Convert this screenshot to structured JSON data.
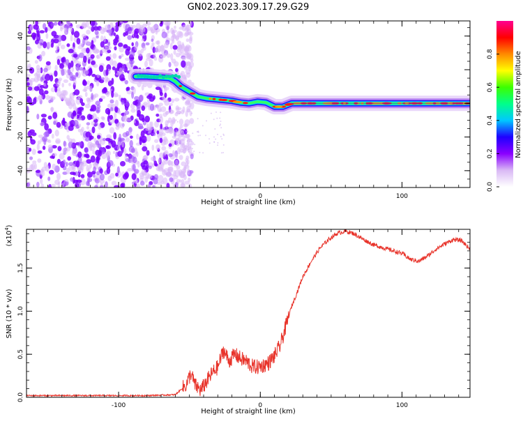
{
  "title": "GN02.2023.309.17.29.G29",
  "colorbar": {
    "label": "Normalized spectral amplitude",
    "ticks": [
      0.0,
      0.2,
      0.4,
      0.6,
      0.8
    ],
    "range": [
      0,
      1
    ],
    "colors": [
      "#ffffff",
      "#d9b8f5",
      "#8a00ff",
      "#1f00ff",
      "#00c8ff",
      "#00ff8a",
      "#3cff00",
      "#ffff00",
      "#ff8a00",
      "#ff0000",
      "#ff0090"
    ]
  },
  "chart_data": [
    {
      "type": "heatmap",
      "xlabel": "Height of straight line (km)",
      "ylabel": "Frequency (Hz)",
      "xlim": [
        -165,
        148
      ],
      "ylim": [
        -50,
        49
      ],
      "xticks": [
        -100,
        0,
        100
      ],
      "yticks": [
        -40,
        -20,
        0,
        20,
        40
      ],
      "ridge": {
        "x": [
          -88,
          -80,
          -72,
          -64,
          -60,
          -56,
          -50,
          -44,
          -38,
          -32,
          -26,
          -20,
          -14,
          -8,
          -2,
          4,
          10,
          16,
          22,
          40,
          60,
          80,
          100,
          120,
          148
        ],
        "y": [
          16,
          16,
          15.5,
          15,
          13,
          10,
          7,
          4,
          3,
          2.5,
          2,
          1.5,
          0.5,
          0,
          1,
          0.5,
          -2,
          -2,
          0,
          0,
          0,
          0,
          0,
          0,
          0
        ]
      },
      "noise_region": [
        -165,
        -60
      ]
    },
    {
      "type": "line",
      "xlabel": "Height of straight line (km)",
      "ylabel": "SNR (10 * v/v)",
      "scale_note": "(x10",
      "scale_exp": "4",
      "scale_close": ")",
      "xlim": [
        -165,
        148
      ],
      "ylim": [
        0,
        1.95
      ],
      "xticks": [
        -100,
        0,
        100
      ],
      "yticks": [
        0.0,
        0.5,
        1.0,
        1.5
      ],
      "ytick_labels": [
        "0.0",
        "0.5",
        "1.0",
        "1.5"
      ],
      "series": [
        {
          "color": "#e8332a",
          "x": [
            -165,
            -140,
            -110,
            -80,
            -60,
            -52,
            -49,
            -46,
            -42,
            -38,
            -34,
            -30,
            -26,
            -22,
            -18,
            -14,
            -10,
            -6,
            -2,
            2,
            6,
            10,
            14,
            18,
            22,
            26,
            30,
            36,
            42,
            48,
            54,
            60,
            66,
            72,
            80,
            90,
            100,
            106,
            112,
            118,
            124,
            130,
            136,
            142,
            148
          ],
          "y": [
            0.02,
            0.02,
            0.02,
            0.02,
            0.03,
            0.15,
            0.28,
            0.14,
            0.08,
            0.18,
            0.28,
            0.35,
            0.55,
            0.42,
            0.5,
            0.45,
            0.42,
            0.36,
            0.35,
            0.37,
            0.4,
            0.48,
            0.6,
            0.82,
            1.05,
            1.22,
            1.4,
            1.58,
            1.73,
            1.83,
            1.9,
            1.93,
            1.9,
            1.84,
            1.77,
            1.72,
            1.67,
            1.6,
            1.58,
            1.64,
            1.72,
            1.78,
            1.83,
            1.82,
            1.72
          ]
        }
      ]
    }
  ]
}
